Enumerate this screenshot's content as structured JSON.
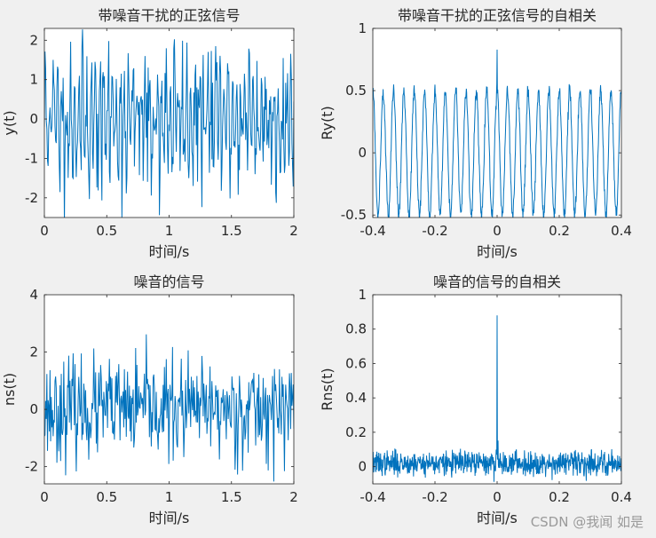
{
  "chart_data": [
    {
      "type": "line",
      "title": "带噪音干扰的正弦信号",
      "xlabel": "时间/s",
      "ylabel": "y(t)",
      "xlim": [
        0,
        2
      ],
      "ylim": [
        -2.5,
        2.3
      ],
      "xticks": [
        0,
        0.5,
        1,
        1.5,
        2
      ],
      "xtick_labels": [
        "0",
        "0.5",
        "1",
        "1.5",
        "2"
      ],
      "yticks": [
        -2,
        -1,
        0,
        1,
        2
      ],
      "ytick_labels": [
        "-2",
        "-1",
        "0",
        "1",
        "2"
      ],
      "signal": {
        "kind": "noisy-sine",
        "n_points": 400,
        "amplitude": 1.0,
        "frequency_hz": 30,
        "noise_std": 0.7,
        "seed": 11
      },
      "line_color": "#0072bd",
      "grid": false
    },
    {
      "type": "line",
      "title": "带噪音干扰的正弦信号的自相关",
      "xlabel": "时间/s",
      "ylabel": "Ry(t)",
      "xlim": [
        -0.4,
        0.4
      ],
      "ylim": [
        -0.52,
        1.0
      ],
      "xticks": [
        -0.4,
        -0.2,
        0,
        0.2,
        0.4
      ],
      "xtick_labels": [
        "-0.4",
        "-0.2",
        "0",
        "0.2",
        "0.4"
      ],
      "yticks": [
        -0.5,
        0,
        0.5,
        1
      ],
      "ytick_labels": [
        "-0.5",
        "0",
        "0.5",
        "1"
      ],
      "signal": {
        "kind": "autocorr-sine",
        "n_points": 801,
        "amplitude": 0.5,
        "frequency_hz": 30,
        "peak": 0.83,
        "ripple": 0.03,
        "seed": 5
      },
      "line_color": "#0072bd",
      "grid": false
    },
    {
      "type": "line",
      "title": "噪音的信号",
      "xlabel": "时间/s",
      "ylabel": "ns(t)",
      "xlim": [
        0,
        2
      ],
      "ylim": [
        -2.6,
        4
      ],
      "xticks": [
        0,
        0.5,
        1,
        1.5,
        2
      ],
      "xtick_labels": [
        "0",
        "0.5",
        "1",
        "1.5",
        "2"
      ],
      "yticks": [
        -2,
        0,
        2,
        4
      ],
      "ytick_labels": [
        "-2",
        "0",
        "2",
        "4"
      ],
      "signal": {
        "kind": "noise",
        "n_points": 400,
        "noise_std": 0.85,
        "seed": 23
      },
      "line_color": "#0072bd",
      "grid": false
    },
    {
      "type": "line",
      "title": "噪音的信号的自相关",
      "xlabel": "时间/s",
      "ylabel": "Rns(t)",
      "xlim": [
        -0.4,
        0.4
      ],
      "ylim": [
        -0.1,
        1.0
      ],
      "xticks": [
        -0.4,
        -0.2,
        0,
        0.2,
        0.4
      ],
      "xtick_labels": [
        "-0.4",
        "-0.2",
        "0",
        "0.2",
        "0.4"
      ],
      "yticks": [
        0,
        0.2,
        0.4,
        0.6,
        0.8,
        1
      ],
      "ytick_labels": [
        "0",
        "0.2",
        "0.4",
        "0.6",
        "0.8",
        "1"
      ],
      "signal": {
        "kind": "autocorr-noise",
        "n_points": 801,
        "peak": 0.88,
        "baseline": 0.02,
        "ripple": 0.035,
        "seed": 37
      },
      "line_color": "#0072bd",
      "grid": false
    }
  ],
  "watermark": "CSDN @我闻 如是"
}
